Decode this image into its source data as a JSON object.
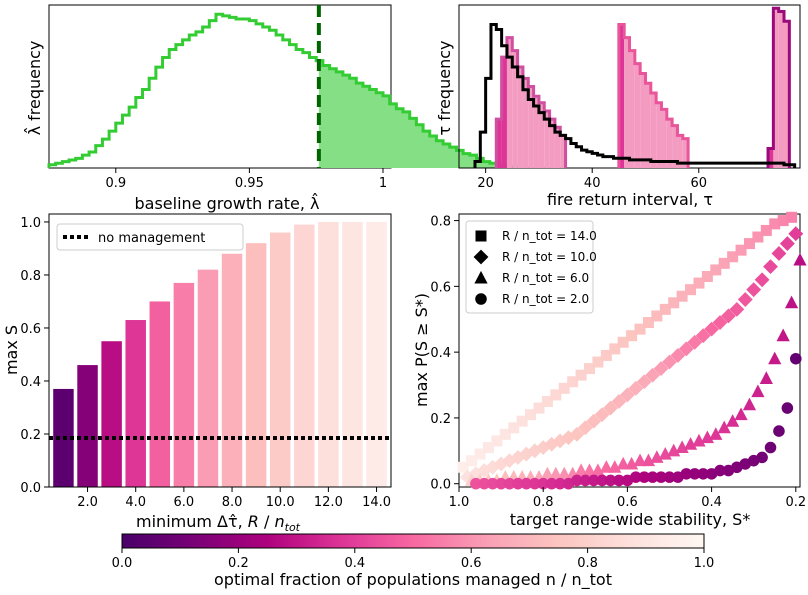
{
  "colors": {
    "green_line": "#33cc33",
    "green_fill": "#85e085",
    "green_dash": "#006400",
    "black": "#000000",
    "cmap": [
      "#49006a",
      "#7a0177",
      "#ae017e",
      "#dd3497",
      "#f768a1",
      "#fa9fb5",
      "#fcc5c0",
      "#fde0dd",
      "#fff7f3"
    ]
  },
  "panel_a": {
    "xlabel": "baseline growth rate, λ̂",
    "ylabel": "λ̂ frequency",
    "xticks": [
      "0.9",
      "0.95",
      "1"
    ],
    "xlim": [
      0.875,
      1.003
    ],
    "threshold": 0.976,
    "chart_data": {
      "type": "histogram",
      "bin_width": 0.0025,
      "x_start": 0.875,
      "counts": [
        2,
        3,
        4,
        5,
        6,
        8,
        10,
        14,
        18,
        23,
        28,
        33,
        38,
        44,
        49,
        56,
        63,
        69,
        74,
        77,
        80,
        83,
        85,
        88,
        92,
        96,
        95,
        94,
        93,
        93,
        92,
        90,
        88,
        86,
        83,
        80,
        77,
        74,
        72,
        69,
        67,
        64,
        62,
        60,
        58,
        56,
        53,
        51,
        49,
        47,
        45,
        40,
        37,
        35,
        31,
        27,
        23,
        20,
        17,
        15,
        13,
        11,
        9,
        8,
        6,
        4,
        3,
        2,
        1,
        1
      ]
    }
  },
  "panel_b": {
    "xlabel": "fire return interval, τ",
    "ylabel": "τ frequency",
    "xticks": [
      "20",
      "40",
      "60"
    ],
    "xlim": [
      15,
      79
    ],
    "chart_data": {
      "type": "histogram",
      "black_outline": {
        "edges": [
          18,
          19,
          20,
          21,
          22,
          23,
          24,
          25,
          26,
          27,
          28,
          29,
          30,
          31,
          32,
          33,
          34,
          35,
          36,
          37,
          38,
          39,
          40,
          41,
          42,
          43,
          44,
          45,
          46,
          47,
          48,
          49,
          50,
          51,
          52,
          53,
          54,
          55,
          56,
          57,
          58,
          59,
          60,
          61,
          62,
          63,
          64,
          65,
          66,
          67,
          68,
          69,
          70,
          71,
          72,
          73,
          74,
          75,
          76,
          77,
          78
        ],
        "counts": [
          4,
          22,
          55,
          88,
          85,
          75,
          68,
          62,
          56,
          48,
          42,
          38,
          34,
          30,
          26,
          22,
          20,
          18,
          15,
          13,
          11,
          10,
          9,
          8,
          7,
          7,
          6,
          6,
          6,
          5,
          5,
          5,
          5,
          4,
          4,
          4,
          4,
          4,
          3,
          3,
          3,
          3,
          3,
          3,
          3,
          3,
          3,
          3,
          3,
          3,
          3,
          3,
          3,
          3,
          3,
          3,
          3,
          3,
          2,
          2
        ]
      },
      "groups": [
        {
          "tau_edges": [
            22,
            23,
            24,
            25,
            26,
            27,
            28,
            29,
            30,
            31,
            32,
            33,
            34,
            35
          ],
          "counts": [
            30,
            68,
            80,
            72,
            62,
            55,
            50,
            44,
            40,
            35,
            30,
            25,
            20
          ],
          "dark_until": 24
        },
        {
          "tau_edges": [
            45,
            46,
            47,
            48,
            49,
            50,
            51,
            52,
            53,
            54,
            55,
            56,
            57,
            58
          ],
          "counts": [
            88,
            80,
            72,
            64,
            58,
            52,
            46,
            40,
            36,
            30,
            26,
            20,
            18
          ],
          "dark_until": 46
        },
        {
          "tau_edges": [
            73,
            74,
            75,
            76,
            77
          ],
          "counts": [
            12,
            98,
            96,
            90
          ],
          "dark_until": 74
        }
      ]
    }
  },
  "panel_c": {
    "xlabel": "minimum Δτ̂, R / n_tot",
    "ylabel": "max S",
    "xticks": [
      "2.0",
      "4.0",
      "6.0",
      "8.0",
      "10.0",
      "12.0",
      "14.0"
    ],
    "yticks": [
      "0.0",
      "0.2",
      "0.4",
      "0.6",
      "0.8",
      "1.0"
    ],
    "legend": "no management",
    "chart_data": {
      "type": "bar",
      "x": [
        1,
        2,
        3,
        4,
        5,
        6,
        7,
        8,
        9,
        10,
        11,
        12,
        13,
        14
      ],
      "values": [
        0.37,
        0.46,
        0.55,
        0.63,
        0.7,
        0.77,
        0.82,
        0.88,
        0.92,
        0.96,
        0.99,
        1.0,
        1.0,
        1.0
      ],
      "fraction_managed": [
        0.05,
        0.15,
        0.28,
        0.38,
        0.48,
        0.55,
        0.62,
        0.68,
        0.73,
        0.78,
        0.83,
        0.87,
        0.9,
        0.93
      ],
      "baseline": 0.185,
      "ylim": [
        0,
        1.03
      ],
      "xlim": [
        0.4,
        14.6
      ]
    }
  },
  "panel_d": {
    "xlabel": "target range-wide stability, S*",
    "ylabel": "max P(S ≥ S*)",
    "xticks": [
      "1.0",
      "0.8",
      "0.6",
      "0.4",
      "0.2"
    ],
    "yticks": [
      "0.0",
      "0.2",
      "0.4",
      "0.6",
      "0.8"
    ],
    "legend": [
      "R / n_tot = 14.0",
      "R / n_tot = 10.0",
      "R / n_tot = 6.0",
      "R / n_tot = 2.0"
    ],
    "chart_data": {
      "type": "scatter",
      "xlim": [
        1.0,
        0.19
      ],
      "ylim": [
        -0.01,
        0.82
      ],
      "series": [
        {
          "name": "R / n_tot = 14.0",
          "marker": "square",
          "x": [
            0.99,
            0.97,
            0.95,
            0.93,
            0.91,
            0.89,
            0.87,
            0.85,
            0.83,
            0.81,
            0.79,
            0.77,
            0.75,
            0.73,
            0.71,
            0.69,
            0.67,
            0.65,
            0.63,
            0.61,
            0.59,
            0.57,
            0.55,
            0.53,
            0.51,
            0.49,
            0.47,
            0.45,
            0.43,
            0.41,
            0.39,
            0.37,
            0.35,
            0.33,
            0.31,
            0.29,
            0.27,
            0.25,
            0.23,
            0.21
          ],
          "y": [
            0.05,
            0.07,
            0.09,
            0.11,
            0.13,
            0.15,
            0.17,
            0.19,
            0.21,
            0.23,
            0.25,
            0.27,
            0.29,
            0.31,
            0.33,
            0.35,
            0.37,
            0.39,
            0.41,
            0.43,
            0.45,
            0.47,
            0.49,
            0.51,
            0.53,
            0.55,
            0.57,
            0.59,
            0.61,
            0.63,
            0.65,
            0.67,
            0.69,
            0.71,
            0.73,
            0.75,
            0.77,
            0.79,
            0.8,
            0.81
          ],
          "frac": [
            0.95,
            0.94,
            0.93,
            0.92,
            0.91,
            0.9,
            0.89,
            0.88,
            0.87,
            0.86,
            0.85,
            0.84,
            0.83,
            0.82,
            0.81,
            0.8,
            0.79,
            0.78,
            0.77,
            0.76,
            0.75,
            0.74,
            0.73,
            0.72,
            0.71,
            0.7,
            0.69,
            0.68,
            0.67,
            0.66,
            0.65,
            0.64,
            0.63,
            0.62,
            0.61,
            0.6,
            0.59,
            0.58,
            0.57,
            0.56
          ]
        },
        {
          "name": "R / n_tot = 10.0",
          "marker": "diamond",
          "x": [
            0.98,
            0.96,
            0.94,
            0.92,
            0.9,
            0.88,
            0.86,
            0.84,
            0.82,
            0.8,
            0.78,
            0.76,
            0.74,
            0.72,
            0.7,
            0.68,
            0.66,
            0.64,
            0.62,
            0.6,
            0.58,
            0.56,
            0.54,
            0.52,
            0.5,
            0.48,
            0.46,
            0.44,
            0.42,
            0.4,
            0.38,
            0.36,
            0.34,
            0.32,
            0.3,
            0.28,
            0.26,
            0.24,
            0.22,
            0.2
          ],
          "y": [
            0.02,
            0.03,
            0.04,
            0.05,
            0.06,
            0.07,
            0.08,
            0.09,
            0.1,
            0.11,
            0.12,
            0.13,
            0.14,
            0.15,
            0.17,
            0.19,
            0.21,
            0.23,
            0.25,
            0.27,
            0.29,
            0.31,
            0.33,
            0.35,
            0.37,
            0.39,
            0.41,
            0.43,
            0.45,
            0.47,
            0.49,
            0.51,
            0.53,
            0.56,
            0.59,
            0.62,
            0.66,
            0.7,
            0.73,
            0.76
          ],
          "frac": [
            0.88,
            0.87,
            0.86,
            0.85,
            0.84,
            0.83,
            0.82,
            0.81,
            0.8,
            0.79,
            0.78,
            0.77,
            0.76,
            0.75,
            0.74,
            0.73,
            0.72,
            0.71,
            0.7,
            0.69,
            0.68,
            0.66,
            0.64,
            0.62,
            0.6,
            0.58,
            0.56,
            0.54,
            0.52,
            0.5,
            0.49,
            0.48,
            0.47,
            0.46,
            0.45,
            0.44,
            0.43,
            0.42,
            0.41,
            0.4
          ]
        },
        {
          "name": "R / n_tot = 6.0",
          "marker": "triangle",
          "x": [
            0.97,
            0.95,
            0.93,
            0.91,
            0.89,
            0.87,
            0.85,
            0.83,
            0.81,
            0.79,
            0.77,
            0.75,
            0.73,
            0.71,
            0.69,
            0.67,
            0.65,
            0.63,
            0.61,
            0.59,
            0.57,
            0.55,
            0.53,
            0.51,
            0.49,
            0.47,
            0.45,
            0.43,
            0.41,
            0.39,
            0.37,
            0.35,
            0.33,
            0.31,
            0.29,
            0.27,
            0.25,
            0.23,
            0.21,
            0.19
          ],
          "y": [
            0.01,
            0.01,
            0.01,
            0.01,
            0.02,
            0.02,
            0.02,
            0.02,
            0.02,
            0.03,
            0.03,
            0.03,
            0.03,
            0.04,
            0.04,
            0.04,
            0.05,
            0.05,
            0.06,
            0.06,
            0.07,
            0.07,
            0.08,
            0.09,
            0.1,
            0.11,
            0.12,
            0.13,
            0.14,
            0.15,
            0.17,
            0.19,
            0.21,
            0.24,
            0.28,
            0.32,
            0.38,
            0.45,
            0.55,
            0.68
          ],
          "frac": [
            0.8,
            0.79,
            0.77,
            0.75,
            0.73,
            0.71,
            0.69,
            0.67,
            0.65,
            0.63,
            0.61,
            0.59,
            0.57,
            0.55,
            0.53,
            0.51,
            0.5,
            0.49,
            0.48,
            0.47,
            0.46,
            0.45,
            0.44,
            0.43,
            0.42,
            0.41,
            0.4,
            0.4,
            0.39,
            0.38,
            0.37,
            0.36,
            0.35,
            0.34,
            0.33,
            0.32,
            0.31,
            0.3,
            0.29,
            0.28
          ]
        },
        {
          "name": "R / n_tot = 2.0",
          "marker": "circle",
          "x": [
            0.96,
            0.94,
            0.92,
            0.9,
            0.88,
            0.86,
            0.84,
            0.82,
            0.8,
            0.78,
            0.76,
            0.74,
            0.72,
            0.7,
            0.68,
            0.66,
            0.64,
            0.62,
            0.6,
            0.58,
            0.56,
            0.54,
            0.52,
            0.5,
            0.48,
            0.46,
            0.44,
            0.42,
            0.4,
            0.38,
            0.36,
            0.34,
            0.32,
            0.3,
            0.28,
            0.26,
            0.24,
            0.22,
            0.2
          ],
          "y": [
            0.0,
            0.0,
            0.0,
            0.0,
            0.0,
            0.0,
            0.0,
            0.0,
            0.0,
            0.0,
            0.0,
            0.0,
            0.01,
            0.01,
            0.01,
            0.01,
            0.01,
            0.01,
            0.01,
            0.02,
            0.02,
            0.02,
            0.02,
            0.02,
            0.02,
            0.03,
            0.03,
            0.03,
            0.03,
            0.04,
            0.04,
            0.05,
            0.06,
            0.07,
            0.08,
            0.11,
            0.16,
            0.23,
            0.38
          ],
          "frac": [
            0.45,
            0.44,
            0.43,
            0.42,
            0.41,
            0.4,
            0.39,
            0.38,
            0.37,
            0.36,
            0.35,
            0.34,
            0.33,
            0.32,
            0.31,
            0.3,
            0.29,
            0.28,
            0.27,
            0.26,
            0.25,
            0.24,
            0.23,
            0.22,
            0.21,
            0.2,
            0.19,
            0.18,
            0.17,
            0.16,
            0.15,
            0.14,
            0.13,
            0.12,
            0.11,
            0.1,
            0.09,
            0.08,
            0.07
          ]
        }
      ]
    }
  },
  "colorbar": {
    "label": "optimal fraction of populations managed n / n_tot",
    "ticks": [
      "0.0",
      "0.2",
      "0.4",
      "0.6",
      "0.8",
      "1.0"
    ],
    "range": [
      0,
      1
    ]
  }
}
